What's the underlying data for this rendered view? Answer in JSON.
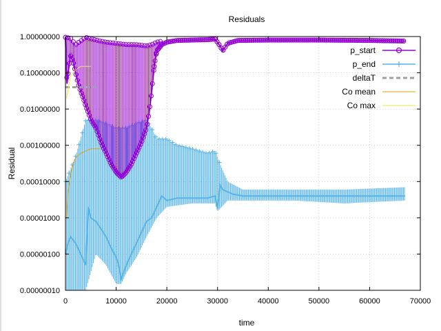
{
  "chart_data": {
    "type": "line",
    "title": "Residuals",
    "xlabel": "time",
    "ylabel": "Residual",
    "xlim": [
      0,
      70000
    ],
    "ylim": [
      1e-07,
      1
    ],
    "y_scale": "log",
    "grid": true,
    "legend_position": "top-right",
    "x_ticks": [
      0,
      10000,
      20000,
      30000,
      40000,
      50000,
      60000,
      70000
    ],
    "x_tick_labels": [
      "0",
      "10000",
      "20000",
      "30000",
      "40000",
      "50000",
      "60000",
      "70000"
    ],
    "y_ticks": [
      1e-07,
      1e-06,
      1e-05,
      0.0001,
      0.001,
      0.01,
      0.1,
      1
    ],
    "y_tick_labels": [
      "0.00000010",
      "0.00000100",
      "0.00001000",
      "0.00010000",
      "0.00100000",
      "0.01000000",
      "0.10000000",
      "1.00000000"
    ],
    "series": [
      {
        "name": "p_start",
        "color": "#9400d3",
        "marker": "circle",
        "points": [
          [
            0,
            0.95
          ],
          [
            300,
            0.05
          ],
          [
            600,
            0.12
          ],
          [
            1000,
            0.3
          ],
          [
            1500,
            0.2
          ],
          [
            2000,
            0.1
          ],
          [
            2500,
            0.05
          ],
          [
            3000,
            0.03
          ],
          [
            3500,
            0.02
          ],
          [
            4000,
            0.012
          ],
          [
            4500,
            0.008
          ],
          [
            5000,
            0.005
          ],
          [
            6000,
            0.003
          ],
          [
            7000,
            0.0012
          ],
          [
            8000,
            0.0006
          ],
          [
            9000,
            0.0003
          ],
          [
            10000,
            0.00018
          ],
          [
            11000,
            0.00013
          ],
          [
            12000,
            0.00018
          ],
          [
            13000,
            0.0003
          ],
          [
            14000,
            0.0006
          ],
          [
            15000,
            0.0012
          ],
          [
            16000,
            0.003
          ],
          [
            16500,
            0.008
          ],
          [
            17000,
            0.03
          ],
          [
            17500,
            0.15
          ],
          [
            18000,
            0.4
          ],
          [
            19000,
            0.6
          ],
          [
            20000,
            0.7
          ],
          [
            22000,
            0.78
          ],
          [
            25000,
            0.8
          ],
          [
            28000,
            0.82
          ],
          [
            29500,
            0.85
          ],
          [
            30500,
            0.55
          ],
          [
            31000,
            0.4
          ],
          [
            32000,
            0.65
          ],
          [
            34000,
            0.78
          ],
          [
            40000,
            0.8
          ],
          [
            50000,
            0.8
          ],
          [
            60000,
            0.78
          ],
          [
            67000,
            0.75
          ]
        ],
        "band_upper": [
          [
            0,
            0.95
          ],
          [
            1000,
            0.9
          ],
          [
            2000,
            0.6
          ],
          [
            4000,
            0.95
          ],
          [
            6000,
            0.8
          ],
          [
            8000,
            0.7
          ],
          [
            10000,
            0.65
          ],
          [
            12000,
            0.6
          ],
          [
            14000,
            0.6
          ],
          [
            16000,
            0.55
          ],
          [
            17000,
            0.6
          ],
          [
            18000,
            0.7
          ],
          [
            20000,
            0.8
          ],
          [
            22000,
            0.85
          ],
          [
            30000,
            0.9
          ],
          [
            67000,
            0.8
          ]
        ]
      },
      {
        "name": "p_end",
        "color": "#56b4e9",
        "marker": "plus",
        "points": [
          [
            0,
            1e-06
          ],
          [
            500,
            2e-06
          ],
          [
            1000,
            3e-06
          ],
          [
            2000,
            2e-06
          ],
          [
            3000,
            1e-06
          ],
          [
            4000,
            5e-07
          ],
          [
            4500,
            2e-05
          ],
          [
            5000,
            1e-05
          ],
          [
            6000,
            8e-06
          ],
          [
            7000,
            5e-06
          ],
          [
            8000,
            3e-06
          ],
          [
            9000,
            1.5e-06
          ],
          [
            10000,
            8e-07
          ],
          [
            10500,
            5e-07
          ],
          [
            11000,
            2e-07
          ],
          [
            12000,
            5e-07
          ],
          [
            13000,
            1e-06
          ],
          [
            14000,
            2e-06
          ],
          [
            15000,
            4e-06
          ],
          [
            16000,
            8e-06
          ],
          [
            17000,
            1e-05
          ],
          [
            18000,
            2e-05
          ],
          [
            19000,
            4e-05
          ],
          [
            20000,
            3e-05
          ],
          [
            22000,
            3.5e-05
          ],
          [
            25000,
            3.5e-05
          ],
          [
            28000,
            3.5e-05
          ],
          [
            29500,
            4e-05
          ],
          [
            30000,
            1.8e-05
          ],
          [
            30500,
            8e-05
          ],
          [
            31000,
            6e-05
          ],
          [
            33000,
            4.5e-05
          ],
          [
            35000,
            4e-05
          ],
          [
            40000,
            4e-05
          ],
          [
            45000,
            4e-05
          ],
          [
            50000,
            4e-05
          ],
          [
            55000,
            4e-05
          ],
          [
            60000,
            4e-05
          ],
          [
            67000,
            4e-05
          ]
        ],
        "band_upper": [
          [
            0,
            0.0001
          ],
          [
            2000,
            0.0005
          ],
          [
            4000,
            0.005
          ],
          [
            6000,
            0.005
          ],
          [
            8000,
            0.004
          ],
          [
            10000,
            0.003
          ],
          [
            12000,
            0.003
          ],
          [
            14000,
            0.004
          ],
          [
            16000,
            0.005
          ],
          [
            17000,
            0.003
          ],
          [
            18000,
            0.0015
          ],
          [
            20000,
            0.0015
          ],
          [
            22000,
            0.001
          ],
          [
            25000,
            0.0008
          ],
          [
            28000,
            0.0006
          ],
          [
            29500,
            0.0007
          ],
          [
            30500,
            0.0003
          ],
          [
            32000,
            0.0001
          ],
          [
            35000,
            6e-05
          ],
          [
            45000,
            6e-05
          ],
          [
            55000,
            6e-05
          ],
          [
            67000,
            7e-05
          ]
        ],
        "band_lower": [
          [
            0,
            1e-07
          ],
          [
            2000,
            1e-07
          ],
          [
            4000,
            1e-07
          ],
          [
            6000,
            1e-06
          ],
          [
            8000,
            5e-07
          ],
          [
            10000,
            1.5e-07
          ],
          [
            11000,
            1.5e-07
          ],
          [
            12000,
            3e-07
          ],
          [
            14000,
            8e-07
          ],
          [
            16000,
            3e-06
          ],
          [
            18000,
            1e-05
          ],
          [
            20000,
            2e-05
          ],
          [
            25000,
            2.5e-05
          ],
          [
            29500,
            2.5e-05
          ],
          [
            30000,
            1.5e-05
          ],
          [
            32000,
            3e-05
          ],
          [
            45000,
            3e-05
          ],
          [
            55000,
            2.5e-05
          ],
          [
            67000,
            3e-05
          ]
        ]
      },
      {
        "name": "deltaT",
        "color": "#a0a0a0",
        "marker": "none",
        "dashed": true,
        "points": [
          [
            0,
            0.04
          ],
          [
            6000,
            0.04
          ]
        ]
      },
      {
        "name": "Co mean",
        "color": "#e69f00",
        "marker": "none",
        "points": [
          [
            200,
            1e-05
          ],
          [
            500,
            5e-05
          ],
          [
            1000,
            0.00015
          ],
          [
            1500,
            0.0003
          ],
          [
            2000,
            0.00045
          ],
          [
            3000,
            0.0006
          ],
          [
            4000,
            0.0007
          ],
          [
            5000,
            0.0008
          ],
          [
            6000,
            0.0008
          ],
          [
            7000,
            0.0008
          ]
        ]
      },
      {
        "name": "Co max",
        "color": "#f0e442",
        "marker": "none",
        "points": [
          [
            200,
            0.02
          ],
          [
            1000,
            0.08
          ],
          [
            2000,
            0.12
          ],
          [
            3000,
            0.15
          ],
          [
            4000,
            0.15
          ],
          [
            5000,
            0.15
          ]
        ]
      }
    ]
  }
}
